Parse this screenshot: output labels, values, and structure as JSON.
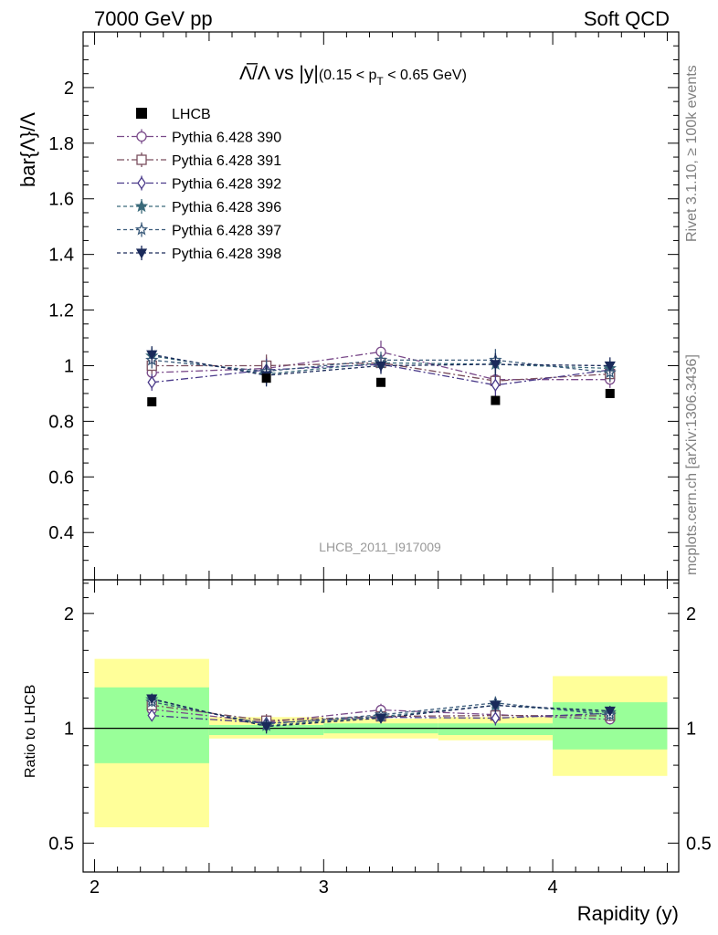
{
  "header": {
    "left": "7000 GeV pp",
    "right": "Soft QCD"
  },
  "side": {
    "rivet": "Rivet 3.1.10, ≥ 100k events",
    "mcplots": "mcplots.cern.ch [arXiv:1306.3436]"
  },
  "chart_data": {
    "type": "scatter",
    "title": {
      "main": "Λ̅/Λ vs |y|",
      "pt_open": "(0.15 < p",
      "pt_sub": "T",
      "pt_close": " < 0.65 GeV)"
    },
    "analysis_id": "LHCB_2011_I917009",
    "ylabel": "bar{Λ}/Λ",
    "ratio_ylabel": "Ratio to LHCB",
    "xlabel": "Rapidity (y)",
    "xlim": [
      1.95,
      4.55
    ],
    "ylim": [
      0.23,
      2.2
    ],
    "ratio_ylim": [
      0.42,
      2.45
    ],
    "x_ticks": [
      "2",
      "3",
      "4"
    ],
    "y_ticks": [
      "0.4",
      "0.6",
      "0.8",
      "1",
      "1.2",
      "1.4",
      "1.6",
      "1.8",
      "2"
    ],
    "ratio_ticks": [
      "0.5",
      "1",
      "2"
    ],
    "x": [
      2.25,
      2.75,
      3.25,
      3.75,
      4.25
    ],
    "bins": [
      [
        2.0,
        2.5
      ],
      [
        2.5,
        3.0
      ],
      [
        3.0,
        3.5
      ],
      [
        3.5,
        4.0
      ],
      [
        4.0,
        4.5
      ]
    ],
    "data": {
      "name": "LHCB",
      "values": [
        0.87,
        0.955,
        0.94,
        0.875,
        0.9
      ],
      "band_inner": [
        [
          0.81,
          1.28
        ],
        [
          0.96,
          1.02
        ],
        [
          0.97,
          1.03
        ],
        [
          0.96,
          1.03
        ],
        [
          0.88,
          1.17
        ]
      ],
      "band_outer": [
        [
          0.55,
          1.52
        ],
        [
          0.94,
          1.07
        ],
        [
          0.94,
          1.06
        ],
        [
          0.93,
          1.07
        ],
        [
          0.75,
          1.37
        ]
      ]
    },
    "series": [
      {
        "name": "Pythia 6.428 390",
        "values": [
          0.975,
          0.99,
          1.05,
          0.95,
          0.95
        ],
        "errors": [
          0.03,
          0.04,
          0.04,
          0.04,
          0.03
        ],
        "color": "#7a4a8a",
        "marker": "circle-open",
        "dash": "8,3,2,3"
      },
      {
        "name": "Pythia 6.428 391",
        "values": [
          1.0,
          1.0,
          1.01,
          0.945,
          0.97
        ],
        "errors": [
          0.03,
          0.04,
          0.03,
          0.04,
          0.03
        ],
        "color": "#7a4e5e",
        "marker": "square-open",
        "dash": "8,3,2,3"
      },
      {
        "name": "Pythia 6.428 392",
        "values": [
          0.94,
          0.985,
          1.005,
          0.93,
          0.985
        ],
        "errors": [
          0.03,
          0.04,
          0.03,
          0.04,
          0.03
        ],
        "color": "#4a3a8a",
        "marker": "diamond-open",
        "dash": "8,3,2,3"
      },
      {
        "name": "Pythia 6.428 396",
        "values": [
          1.035,
          0.97,
          1.01,
          1.005,
          0.99
        ],
        "errors": [
          0.03,
          0.04,
          0.03,
          0.04,
          0.03
        ],
        "color": "#3a6a7a",
        "marker": "star-filled",
        "dash": "4,3"
      },
      {
        "name": "Pythia 6.428 397",
        "values": [
          1.02,
          0.98,
          1.02,
          1.02,
          0.975
        ],
        "errors": [
          0.03,
          0.04,
          0.03,
          0.04,
          0.03
        ],
        "color": "#3a5a7a",
        "marker": "star-open",
        "dash": "4,3"
      },
      {
        "name": "Pythia 6.428 398",
        "values": [
          1.04,
          0.965,
          1.0,
          1.005,
          1.0
        ],
        "errors": [
          0.03,
          0.04,
          0.03,
          0.04,
          0.03
        ],
        "color": "#1a2a5a",
        "marker": "triangle-down-filled",
        "dash": "4,3"
      }
    ],
    "colors": {
      "band_inner": "#99ff99",
      "band_outer": "#ffff99",
      "data_marker": "#000000"
    },
    "grid": false,
    "legend_position": "top-left"
  }
}
